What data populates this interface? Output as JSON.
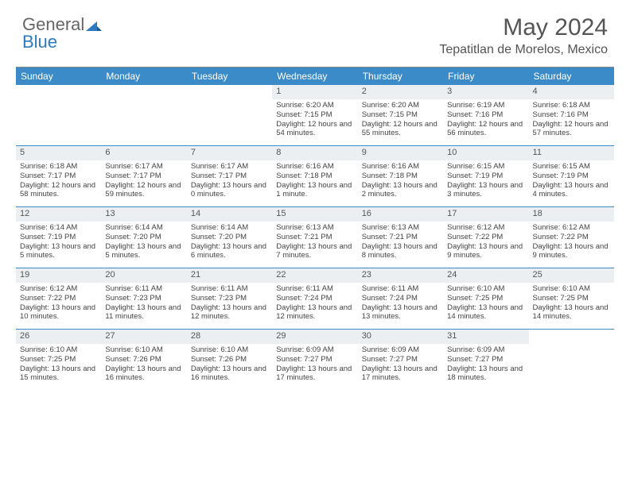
{
  "logo": {
    "text1": "General",
    "text2": "Blue",
    "icon_color": "#2b7ac2"
  },
  "title": "May 2024",
  "location": "Tepatitlan de Morelos, Mexico",
  "header_bg": "#3b8bc9",
  "daynum_bg": "#eceff1",
  "week_border": "#3b8bc9",
  "weekdays": [
    "Sunday",
    "Monday",
    "Tuesday",
    "Wednesday",
    "Thursday",
    "Friday",
    "Saturday"
  ],
  "first_weekday_index": 3,
  "days": [
    {
      "n": 1,
      "sunrise": "6:20 AM",
      "sunset": "7:15 PM",
      "daylight": "12 hours and 54 minutes."
    },
    {
      "n": 2,
      "sunrise": "6:20 AM",
      "sunset": "7:15 PM",
      "daylight": "12 hours and 55 minutes."
    },
    {
      "n": 3,
      "sunrise": "6:19 AM",
      "sunset": "7:16 PM",
      "daylight": "12 hours and 56 minutes."
    },
    {
      "n": 4,
      "sunrise": "6:18 AM",
      "sunset": "7:16 PM",
      "daylight": "12 hours and 57 minutes."
    },
    {
      "n": 5,
      "sunrise": "6:18 AM",
      "sunset": "7:17 PM",
      "daylight": "12 hours and 58 minutes."
    },
    {
      "n": 6,
      "sunrise": "6:17 AM",
      "sunset": "7:17 PM",
      "daylight": "12 hours and 59 minutes."
    },
    {
      "n": 7,
      "sunrise": "6:17 AM",
      "sunset": "7:17 PM",
      "daylight": "13 hours and 0 minutes."
    },
    {
      "n": 8,
      "sunrise": "6:16 AM",
      "sunset": "7:18 PM",
      "daylight": "13 hours and 1 minute."
    },
    {
      "n": 9,
      "sunrise": "6:16 AM",
      "sunset": "7:18 PM",
      "daylight": "13 hours and 2 minutes."
    },
    {
      "n": 10,
      "sunrise": "6:15 AM",
      "sunset": "7:19 PM",
      "daylight": "13 hours and 3 minutes."
    },
    {
      "n": 11,
      "sunrise": "6:15 AM",
      "sunset": "7:19 PM",
      "daylight": "13 hours and 4 minutes."
    },
    {
      "n": 12,
      "sunrise": "6:14 AM",
      "sunset": "7:19 PM",
      "daylight": "13 hours and 5 minutes."
    },
    {
      "n": 13,
      "sunrise": "6:14 AM",
      "sunset": "7:20 PM",
      "daylight": "13 hours and 5 minutes."
    },
    {
      "n": 14,
      "sunrise": "6:14 AM",
      "sunset": "7:20 PM",
      "daylight": "13 hours and 6 minutes."
    },
    {
      "n": 15,
      "sunrise": "6:13 AM",
      "sunset": "7:21 PM",
      "daylight": "13 hours and 7 minutes."
    },
    {
      "n": 16,
      "sunrise": "6:13 AM",
      "sunset": "7:21 PM",
      "daylight": "13 hours and 8 minutes."
    },
    {
      "n": 17,
      "sunrise": "6:12 AM",
      "sunset": "7:22 PM",
      "daylight": "13 hours and 9 minutes."
    },
    {
      "n": 18,
      "sunrise": "6:12 AM",
      "sunset": "7:22 PM",
      "daylight": "13 hours and 9 minutes."
    },
    {
      "n": 19,
      "sunrise": "6:12 AM",
      "sunset": "7:22 PM",
      "daylight": "13 hours and 10 minutes."
    },
    {
      "n": 20,
      "sunrise": "6:11 AM",
      "sunset": "7:23 PM",
      "daylight": "13 hours and 11 minutes."
    },
    {
      "n": 21,
      "sunrise": "6:11 AM",
      "sunset": "7:23 PM",
      "daylight": "13 hours and 12 minutes."
    },
    {
      "n": 22,
      "sunrise": "6:11 AM",
      "sunset": "7:24 PM",
      "daylight": "13 hours and 12 minutes."
    },
    {
      "n": 23,
      "sunrise": "6:11 AM",
      "sunset": "7:24 PM",
      "daylight": "13 hours and 13 minutes."
    },
    {
      "n": 24,
      "sunrise": "6:10 AM",
      "sunset": "7:25 PM",
      "daylight": "13 hours and 14 minutes."
    },
    {
      "n": 25,
      "sunrise": "6:10 AM",
      "sunset": "7:25 PM",
      "daylight": "13 hours and 14 minutes."
    },
    {
      "n": 26,
      "sunrise": "6:10 AM",
      "sunset": "7:25 PM",
      "daylight": "13 hours and 15 minutes."
    },
    {
      "n": 27,
      "sunrise": "6:10 AM",
      "sunset": "7:26 PM",
      "daylight": "13 hours and 16 minutes."
    },
    {
      "n": 28,
      "sunrise": "6:10 AM",
      "sunset": "7:26 PM",
      "daylight": "13 hours and 16 minutes."
    },
    {
      "n": 29,
      "sunrise": "6:09 AM",
      "sunset": "7:27 PM",
      "daylight": "13 hours and 17 minutes."
    },
    {
      "n": 30,
      "sunrise": "6:09 AM",
      "sunset": "7:27 PM",
      "daylight": "13 hours and 17 minutes."
    },
    {
      "n": 31,
      "sunrise": "6:09 AM",
      "sunset": "7:27 PM",
      "daylight": "13 hours and 18 minutes."
    }
  ],
  "labels": {
    "sunrise": "Sunrise:",
    "sunset": "Sunset:",
    "daylight": "Daylight:"
  }
}
